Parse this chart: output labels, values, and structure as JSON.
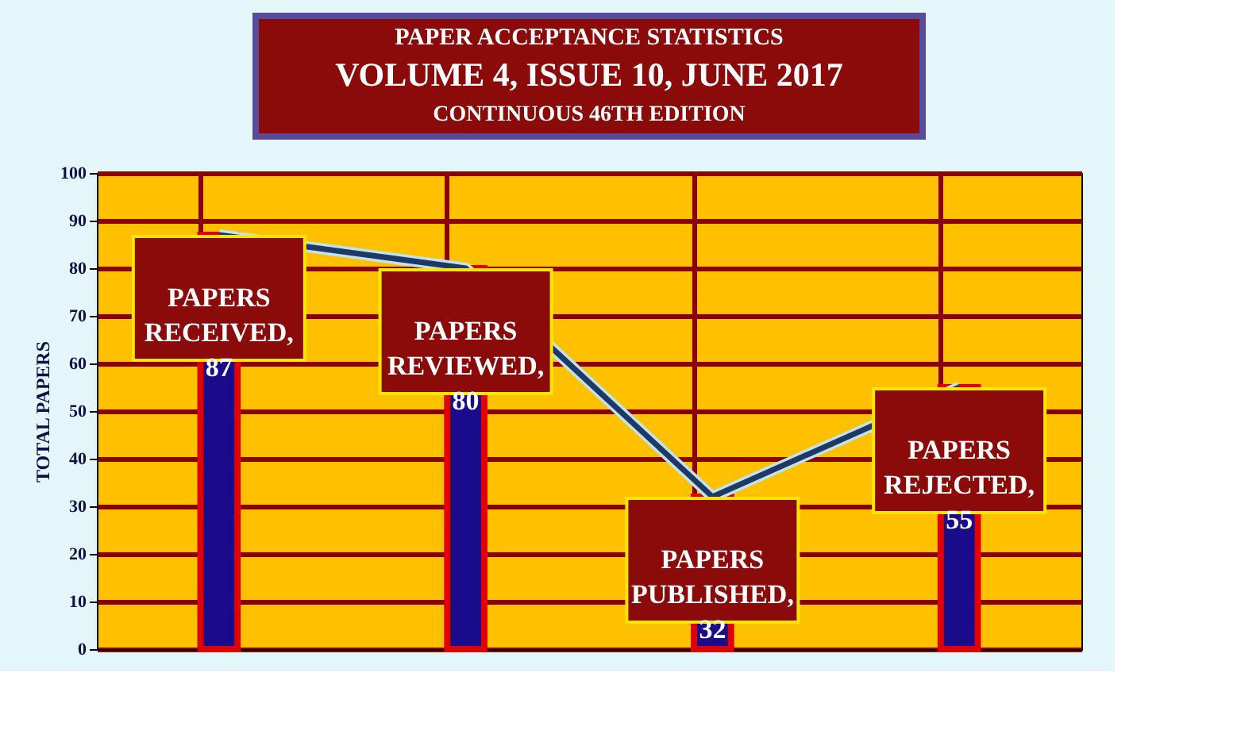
{
  "chart_data": {
    "type": "bar",
    "title": "PAPER ACCEPTANCE STATISTICS",
    "subtitle": "VOLUME 4, ISSUE 10, JUNE 2017",
    "annotations": [
      "CONTINUOUS 46TH EDITION"
    ],
    "ylabel": "TOTAL PAPERS",
    "categories": [
      null,
      null,
      null,
      null
    ],
    "series": [
      {
        "color": "#1a0a8c",
        "values": [
          87,
          80,
          32,
          55
        ],
        "value_labels": [
          "PAPERS RECEIVED, 87",
          "PAPERS REVIEWED, 80",
          "PAPERS PUBLISHED, 32",
          "PAPERS REJECTED, 55"
        ]
      },
      {
        "type": "line",
        "color": "#1f3864",
        "values": [
          87,
          80,
          32,
          55
        ]
      }
    ],
    "ylim": [
      0,
      100
    ],
    "yticks": [
      0,
      10,
      20,
      30,
      40,
      50,
      60,
      70,
      80,
      90,
      100
    ],
    "grid": true,
    "tick_labels": "y",
    "marker": "none",
    "line_style": "solid"
  }
}
